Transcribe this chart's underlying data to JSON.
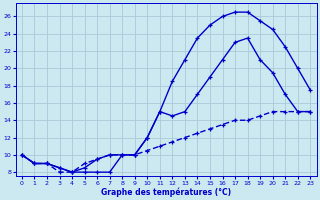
{
  "xlabel": "Graphe des températures (°C)",
  "xlim": [
    -0.5,
    23.5
  ],
  "ylim": [
    7.5,
    27.5
  ],
  "yticks": [
    8,
    10,
    12,
    14,
    16,
    18,
    20,
    22,
    24,
    26
  ],
  "xticks": [
    0,
    1,
    2,
    3,
    4,
    5,
    6,
    7,
    8,
    9,
    10,
    11,
    12,
    13,
    14,
    15,
    16,
    17,
    18,
    19,
    20,
    21,
    22,
    23
  ],
  "bg_color": "#cce8f0",
  "grid_color": "#aac8d8",
  "line_color": "#0000cc",
  "line1_x": [
    0,
    1,
    2,
    3,
    4,
    5,
    6,
    7,
    8,
    9,
    10,
    11,
    12,
    13,
    14,
    15,
    16,
    17,
    18,
    19,
    20,
    21,
    22,
    23
  ],
  "line1_y": [
    10,
    9,
    9,
    8.5,
    8,
    8,
    8,
    8,
    10,
    10,
    12,
    15,
    18.5,
    21,
    23.5,
    25,
    26,
    26.5,
    26.5,
    25.5,
    24.5,
    22.5,
    20,
    17.5
  ],
  "line2_x": [
    0,
    1,
    2,
    3,
    4,
    5,
    6,
    7,
    8,
    9,
    10,
    11,
    12,
    13,
    14,
    15,
    16,
    17,
    18,
    19,
    20,
    21,
    22,
    23
  ],
  "line2_y": [
    10,
    9,
    9,
    8.5,
    8,
    8.5,
    9.5,
    10,
    10,
    10,
    12,
    15,
    14.5,
    15,
    17,
    19,
    21,
    23,
    23.5,
    21,
    19.5,
    17,
    15,
    15
  ],
  "line3_x": [
    0,
    1,
    2,
    3,
    4,
    5,
    6,
    7,
    8,
    9,
    10,
    11,
    12,
    13,
    14,
    15,
    16,
    17,
    18,
    19,
    20,
    21,
    22,
    23
  ],
  "line3_y": [
    10,
    9,
    9,
    8,
    8,
    9,
    9.5,
    10,
    10,
    10,
    10.5,
    11,
    11.5,
    12,
    12.5,
    13,
    13.5,
    14,
    14,
    14.5,
    15,
    15,
    15,
    15
  ]
}
